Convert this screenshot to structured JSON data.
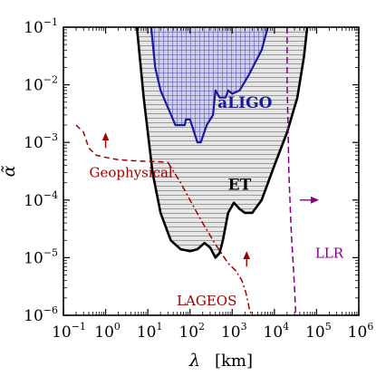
{
  "chart_data": {
    "type": "line",
    "xscale": "log",
    "yscale": "log",
    "xlim": [
      0.1,
      1000000
    ],
    "ylim": [
      1e-06,
      0.1
    ],
    "xlabel": "λ",
    "xlabel_unit": "[km]",
    "ylabel": "α̃",
    "x_ticks": [
      {
        "base": "10",
        "exp": "−1"
      },
      {
        "base": "10",
        "exp": "0"
      },
      {
        "base": "10",
        "exp": "1"
      },
      {
        "base": "10",
        "exp": "2"
      },
      {
        "base": "10",
        "exp": "3"
      },
      {
        "base": "10",
        "exp": "4"
      },
      {
        "base": "10",
        "exp": "5"
      },
      {
        "base": "10",
        "exp": "6"
      }
    ],
    "y_ticks": [
      {
        "base": "10",
        "exp": "−6"
      },
      {
        "base": "10",
        "exp": "−5"
      },
      {
        "base": "10",
        "exp": "−4"
      },
      {
        "base": "10",
        "exp": "−3"
      },
      {
        "base": "10",
        "exp": "−2"
      },
      {
        "base": "10",
        "exp": "−1"
      }
    ],
    "grid": false,
    "series": [
      {
        "name": "ET",
        "style": "solid boundary, grey horizontal-hatched fill",
        "color": "#000000",
        "fill": "#d9d9d9",
        "x": [
          5.5,
          8,
          13,
          20,
          35,
          60,
          100,
          150,
          220,
          300,
          400,
          500,
          600,
          800,
          1100,
          1500,
          2000,
          3000,
          5000,
          10000,
          20000,
          35000,
          50000,
          60000
        ],
        "y": [
          0.1,
          0.006,
          0.0003,
          6e-05,
          2e-05,
          1.4e-05,
          1.3e-05,
          1.4e-05,
          1.8e-05,
          1.5e-05,
          1e-05,
          1.2e-05,
          2e-05,
          6e-05,
          9e-05,
          7e-05,
          6e-05,
          6e-05,
          0.0001,
          0.0004,
          0.0015,
          0.006,
          0.03,
          0.1
        ]
      },
      {
        "name": "aLIGO",
        "style": "solid boundary, blue grid-hatched fill",
        "color": "#1a1aa0",
        "fill": "#c9c9e6",
        "x": [
          12,
          15,
          20,
          30,
          45,
          75,
          80,
          100,
          150,
          180,
          250,
          350,
          400,
          500,
          700,
          800,
          1000,
          1500,
          2500,
          5000,
          7000
        ],
        "y": [
          0.1,
          0.02,
          0.008,
          0.004,
          0.002,
          0.002,
          0.0025,
          0.0025,
          0.001,
          0.001,
          0.002,
          0.003,
          0.008,
          0.006,
          0.006,
          0.008,
          0.007,
          0.008,
          0.015,
          0.04,
          0.1
        ]
      },
      {
        "name": "Geophysical",
        "style": "dashed",
        "color": "#a00000",
        "x": [
          0.2,
          0.3,
          0.4,
          0.6,
          1,
          2,
          5,
          10,
          20,
          30
        ],
        "y": [
          0.002,
          0.0015,
          0.0008,
          0.0006,
          0.00055,
          0.0005,
          0.00048,
          0.00047,
          0.00046,
          0.00045
        ]
      },
      {
        "name": "LAGEOS",
        "style": "dash-dot",
        "color": "#a00000",
        "x": [
          30,
          60,
          100,
          200,
          400,
          800,
          1200,
          1700,
          2100,
          2400,
          2600,
          3000
        ],
        "y": [
          0.00045,
          0.0002,
          0.0001,
          4e-05,
          1.7e-05,
          8e-06,
          6e-06,
          4e-06,
          2.5e-06,
          1.6e-06,
          1.2e-06,
          1e-06
        ]
      },
      {
        "name": "LLR",
        "style": "dashed",
        "color": "#800080",
        "x": [
          20000,
          20000,
          21000,
          22000,
          25000,
          30000,
          32000
        ],
        "y": [
          0.1,
          0.01,
          0.002,
          0.0003,
          3e-05,
          3e-06,
          1e-06
        ]
      }
    ],
    "annotations": [
      {
        "text": "aLIGO",
        "x": 2000,
        "y": 0.004,
        "color": "#1a1aa0"
      },
      {
        "text": "ET",
        "x": 1500,
        "y": 0.00015,
        "color": "#000000"
      },
      {
        "text": "Geophysical",
        "x": 4,
        "y": 0.00025,
        "color": "#a00000"
      },
      {
        "text": "LAGEOS",
        "x": 250,
        "y": 1.5e-06,
        "color": "#a00000"
      },
      {
        "text": "LLR",
        "x": 200000,
        "y": 1e-05,
        "color": "#800080"
      }
    ],
    "arrows": [
      {
        "series": "Geophysical",
        "x": 1,
        "y": 0.0008,
        "direction": "up"
      },
      {
        "series": "LAGEOS",
        "x": 2200,
        "y": 7e-06,
        "direction": "up"
      },
      {
        "series": "LLR",
        "x": 40000,
        "y": 0.0001,
        "direction": "right"
      }
    ]
  }
}
